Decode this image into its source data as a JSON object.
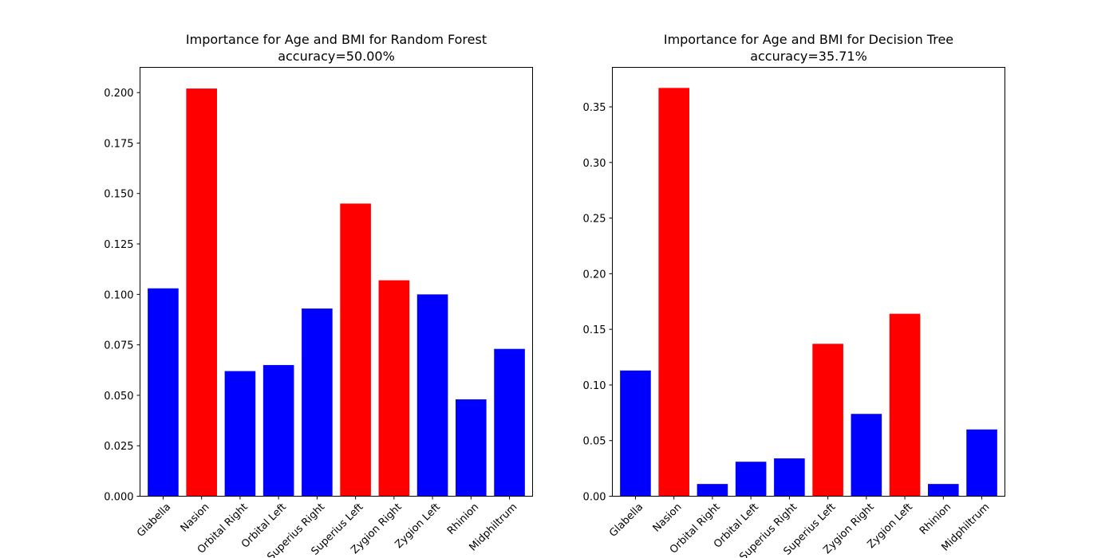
{
  "colors": {
    "default": "#0000ff",
    "highlight": "#ff0000",
    "axis": "#000000",
    "background": "#ffffff"
  },
  "chart_data": [
    {
      "type": "bar",
      "title": "Importance for Age and BMI for Random Forest",
      "subtitle": "accuracy=50.00%",
      "categories": [
        "Glabella",
        "Nasion",
        "Orbital Right",
        "Orbital Left",
        "Superius Right",
        "Superius Left",
        "Zygion Right",
        "Zygion Left",
        "Rhinion",
        "Midphiltrum"
      ],
      "values": [
        0.103,
        0.202,
        0.062,
        0.065,
        0.093,
        0.145,
        0.107,
        0.1,
        0.048,
        0.073
      ],
      "highlighted": [
        false,
        true,
        false,
        false,
        false,
        true,
        true,
        false,
        false,
        false
      ],
      "ylim": [
        0,
        0.2125
      ],
      "yticks": [
        0.0,
        0.025,
        0.05,
        0.075,
        0.1,
        0.125,
        0.15,
        0.175,
        0.2
      ],
      "ytick_labels": [
        "0.000",
        "0.025",
        "0.050",
        "0.075",
        "0.100",
        "0.125",
        "0.150",
        "0.175",
        "0.200"
      ],
      "xlabel": "",
      "ylabel": "",
      "grid": false
    },
    {
      "type": "bar",
      "title": "Importance for Age and BMI for Decision Tree",
      "subtitle": "accuracy=35.71%",
      "categories": [
        "Glabella",
        "Nasion",
        "Orbital Right",
        "Orbital Left",
        "Superius Right",
        "Superius Left",
        "Zygion Right",
        "Zygion Left",
        "Rhinion",
        "Midphiltrum"
      ],
      "values": [
        0.113,
        0.367,
        0.011,
        0.031,
        0.034,
        0.137,
        0.074,
        0.164,
        0.011,
        0.06
      ],
      "highlighted": [
        false,
        true,
        false,
        false,
        false,
        true,
        false,
        true,
        false,
        false
      ],
      "ylim": [
        0,
        0.3855
      ],
      "yticks": [
        0.0,
        0.05,
        0.1,
        0.15,
        0.2,
        0.25,
        0.3,
        0.35
      ],
      "ytick_labels": [
        "0.00",
        "0.05",
        "0.10",
        "0.15",
        "0.20",
        "0.25",
        "0.30",
        "0.35"
      ],
      "xlabel": "",
      "ylabel": "",
      "grid": false
    }
  ]
}
